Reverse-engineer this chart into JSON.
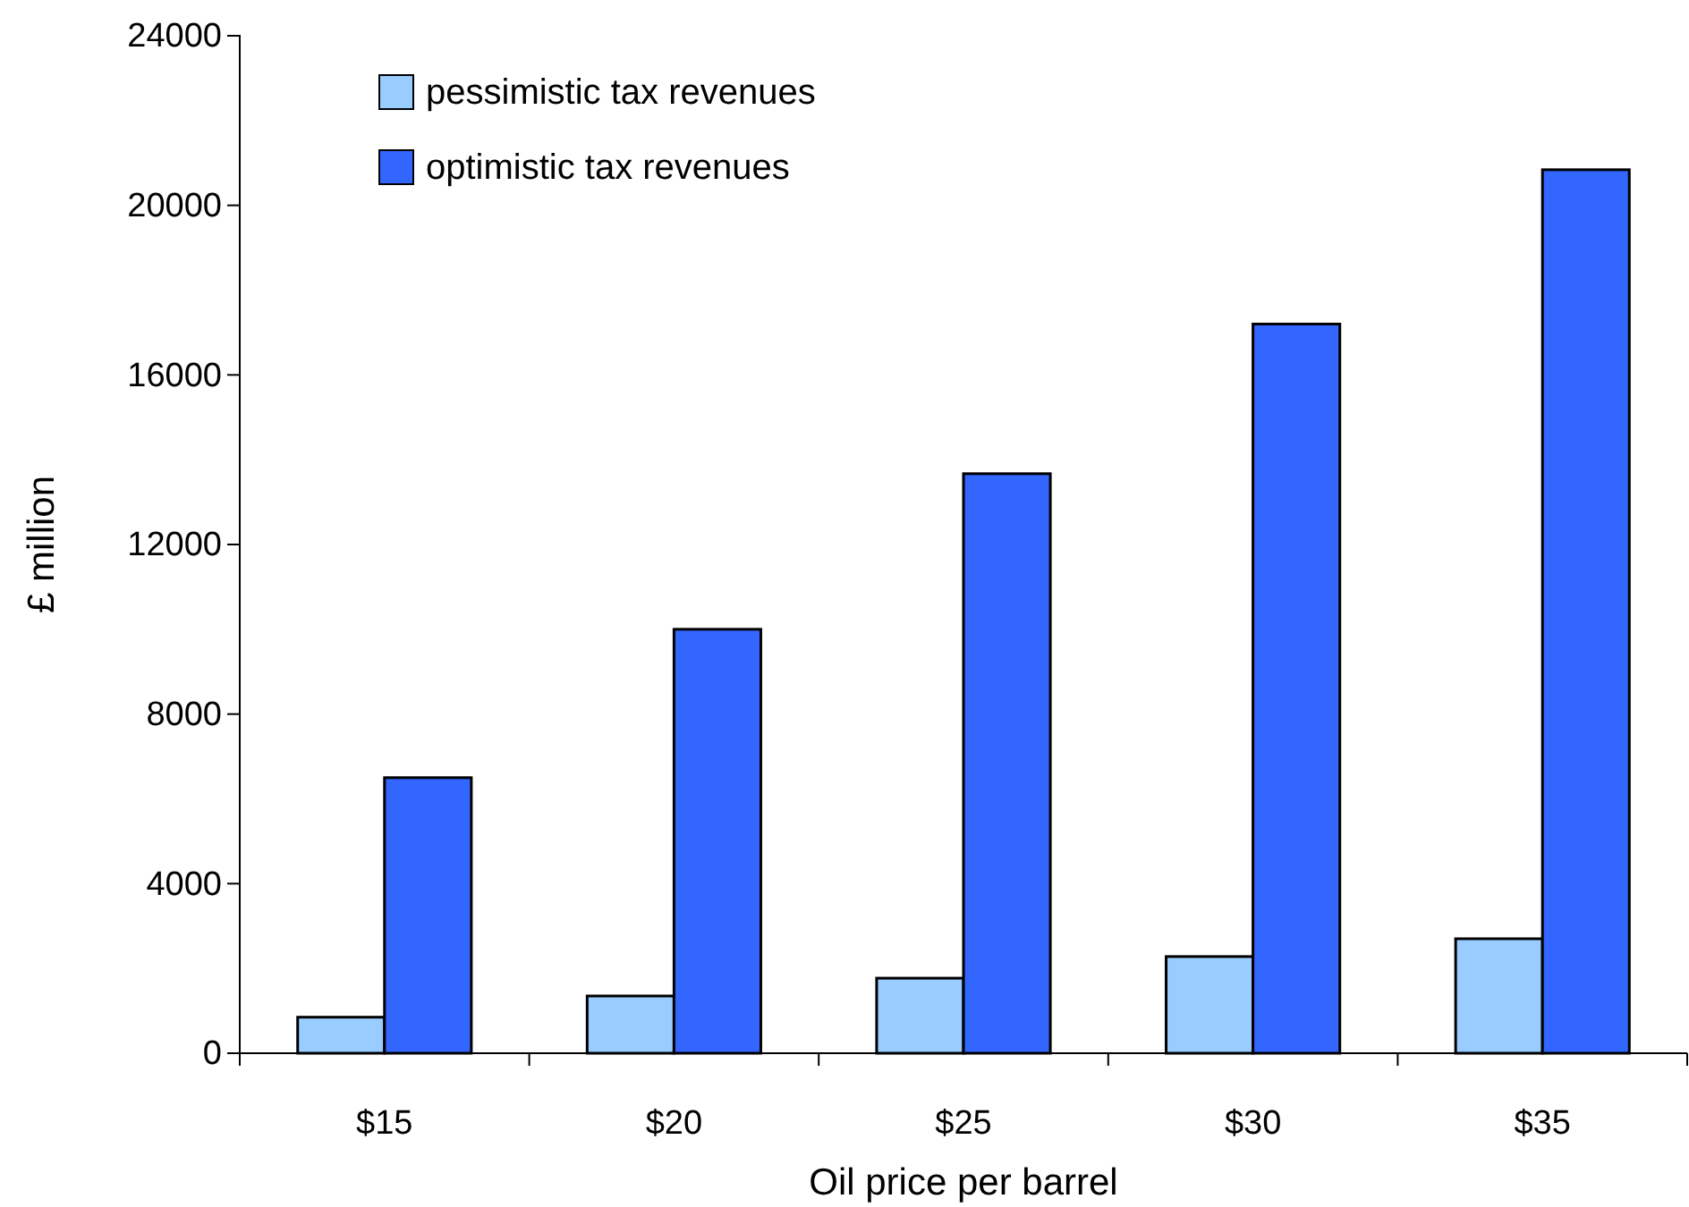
{
  "chart_data": {
    "type": "bar",
    "xlabel": "Oil price per barrel",
    "ylabel": "£ million",
    "categories": [
      "$15",
      "$20",
      "$25",
      "$30",
      "$35"
    ],
    "series": [
      {
        "name": "pessimistic tax revenues",
        "color": "#99ccff",
        "values": [
          850,
          1350,
          1770,
          2280,
          2700
        ]
      },
      {
        "name": "optimistic tax revenues",
        "color": "#3366ff",
        "values": [
          6500,
          10000,
          13670,
          17200,
          20840
        ]
      }
    ],
    "ylim": [
      0,
      24000
    ],
    "yticks": [
      0,
      4000,
      8000,
      12000,
      16000,
      20000,
      24000
    ],
    "grid": false,
    "legend": "top left"
  }
}
